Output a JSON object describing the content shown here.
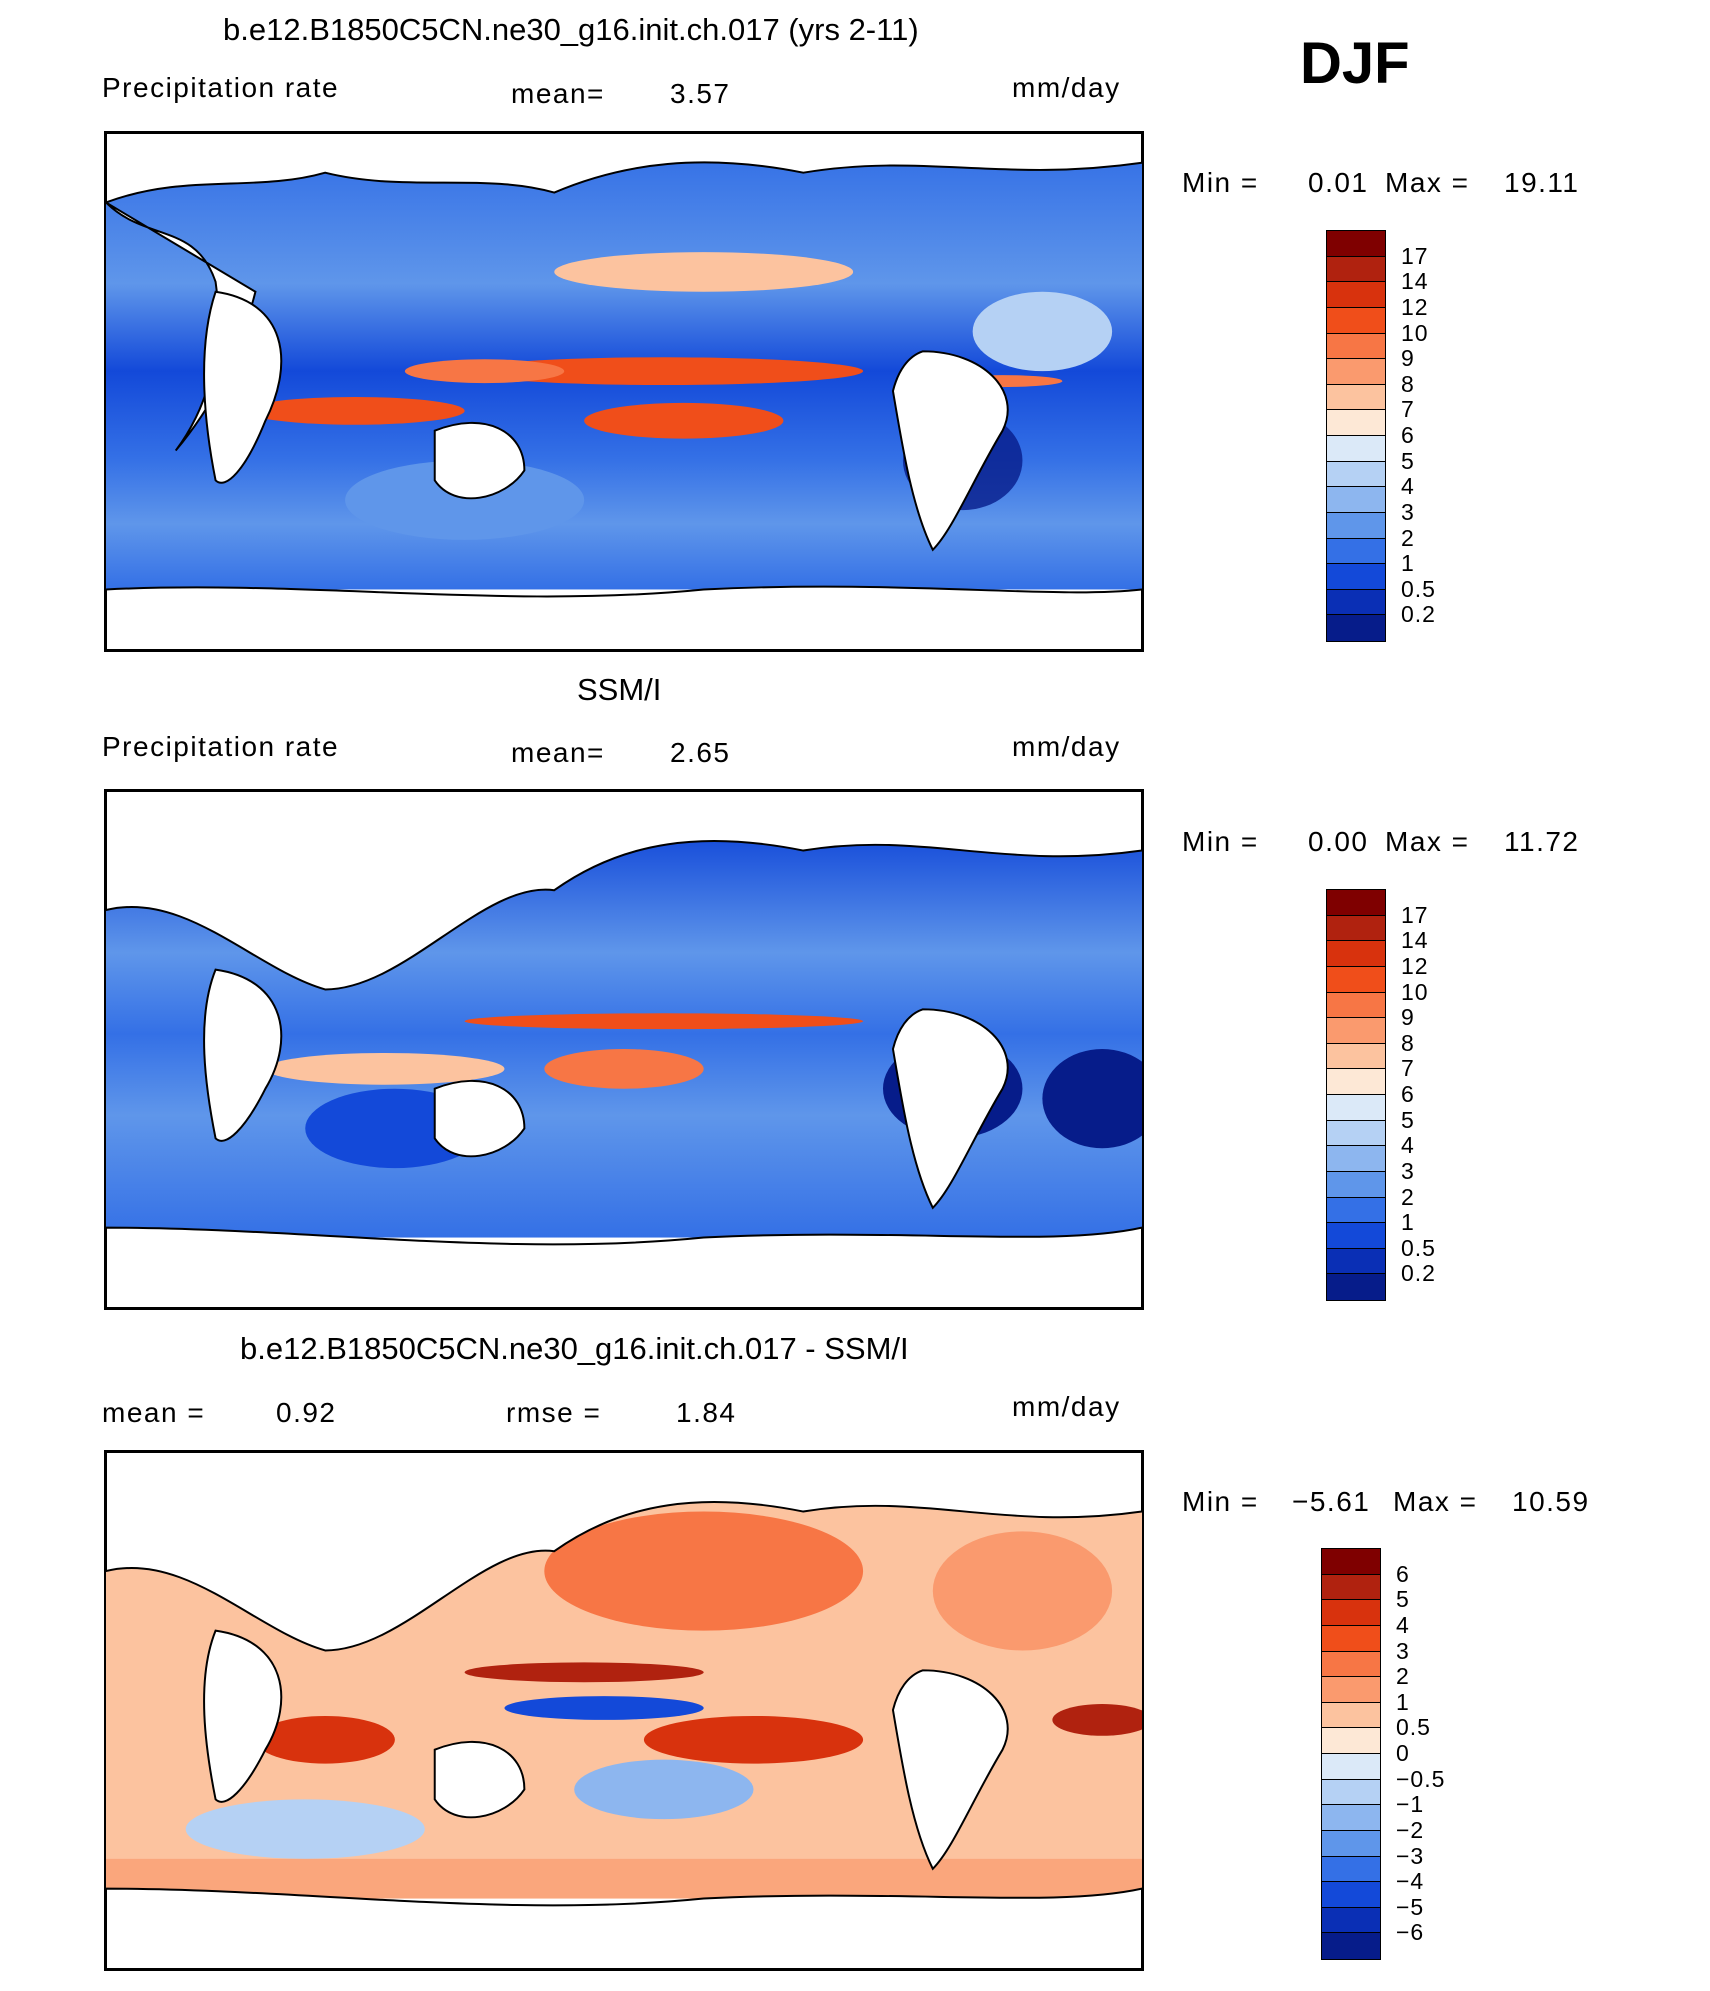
{
  "season": "DJF",
  "panels": [
    {
      "id": "model",
      "title": "b.e12.B1850C5CN.ne30_g16.init.ch.017 (yrs 2-11)",
      "left_label": "Precipitation  rate",
      "stat_label": "mean=",
      "stat_value": "3.57",
      "units": "mm/day",
      "min_label": "Min  =",
      "min_value": "0.01",
      "max_label": "Max  =",
      "max_value": "19.11",
      "colorbar_labels": [
        "17",
        "14",
        "12",
        "10",
        "9",
        "8",
        "7",
        "6",
        "5",
        "4",
        "3",
        "2",
        "1",
        "0.5",
        "0.2"
      ],
      "colorbar_colors": [
        "#7f0000",
        "#b0220f",
        "#d8320d",
        "#f04e1a",
        "#f77645",
        "#fa9a6e",
        "#fcc39f",
        "#fde8d6",
        "#dbe9f8",
        "#b5d1f4",
        "#8db6ef",
        "#5f96ea",
        "#3470e6",
        "#1349d9",
        "#0a2fb5",
        "#061c8a"
      ]
    },
    {
      "id": "obs",
      "title": "SSM/I",
      "left_label": "Precipitation  rate",
      "stat_label": "mean=",
      "stat_value": "2.65",
      "units": "mm/day",
      "min_label": "Min  =",
      "min_value": "0.00",
      "max_label": "Max  =",
      "max_value": "11.72",
      "colorbar_labels": [
        "17",
        "14",
        "12",
        "10",
        "9",
        "8",
        "7",
        "6",
        "5",
        "4",
        "3",
        "2",
        "1",
        "0.5",
        "0.2"
      ],
      "colorbar_colors": [
        "#7f0000",
        "#b0220f",
        "#d8320d",
        "#f04e1a",
        "#f77645",
        "#fa9a6e",
        "#fcc39f",
        "#fde8d6",
        "#dbe9f8",
        "#b5d1f4",
        "#8db6ef",
        "#5f96ea",
        "#3470e6",
        "#1349d9",
        "#0a2fb5",
        "#061c8a"
      ]
    },
    {
      "id": "diff",
      "title": "b.e12.B1850C5CN.ne30_g16.init.ch.017 - SSM/I",
      "left_label": "mean  =",
      "left_value": "0.92",
      "stat_label": "rmse  =",
      "stat_value": "1.84",
      "units": "mm/day",
      "min_label": "Min  =",
      "min_value": "−5.61",
      "max_label": "Max  =",
      "max_value": "10.59",
      "colorbar_labels": [
        "6",
        "5",
        "4",
        "3",
        "2",
        "1",
        "0.5",
        "0",
        "−0.5",
        "−1",
        "−2",
        "−3",
        "−4",
        "−5",
        "−6"
      ],
      "colorbar_colors": [
        "#7f0000",
        "#b0220f",
        "#d8320d",
        "#f04e1a",
        "#f77645",
        "#fa9a6e",
        "#fcc39f",
        "#fde8d6",
        "#dbe9f8",
        "#b5d1f4",
        "#8db6ef",
        "#5f96ea",
        "#3470e6",
        "#1349d9",
        "#0a2fb5",
        "#061c8a"
      ]
    }
  ],
  "colors": {
    "land": "#ffffff",
    "coastline": "#000000"
  }
}
